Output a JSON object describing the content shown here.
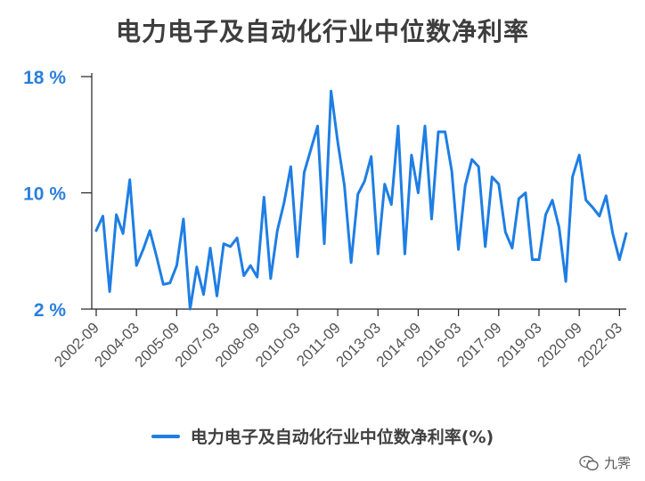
{
  "title": "电力电子及自动化行业中位数净利率",
  "watermark": {
    "text": "九霁",
    "icon": "wechat-icon"
  },
  "colors": {
    "line": "#1e7ee4",
    "tick_label": "#2a7fdc",
    "axis": "#222222",
    "grid": "#d9d9d9"
  },
  "chart_data": {
    "type": "line",
    "title": "电力电子及自动化行业中位数净利率",
    "xlabel": "",
    "ylabel": "",
    "ylim": [
      2,
      18
    ],
    "y_ticks": [
      2,
      10,
      18
    ],
    "y_tick_labels": [
      "2 %",
      "10 %",
      "18 %"
    ],
    "x_tick_labels": [
      "2002-09",
      "2004-03",
      "2005-09",
      "2007-03",
      "2008-09",
      "2010-03",
      "2011-09",
      "2013-03",
      "2014-09",
      "2016-03",
      "2017-09",
      "2019-03",
      "2020-09",
      "2022-03"
    ],
    "x_ticks_every": 6,
    "grid": false,
    "legend": "bottom",
    "series": [
      {
        "name": "电力电子及自动化行业中位数净利率(%)",
        "values": [
          7.4,
          8.4,
          3.2,
          8.5,
          7.2,
          10.9,
          5.0,
          6.1,
          7.4,
          5.6,
          3.7,
          3.8,
          5.0,
          8.2,
          2.0,
          4.9,
          3.0,
          6.2,
          2.9,
          6.5,
          6.3,
          6.9,
          4.3,
          5.0,
          4.2,
          9.7,
          4.1,
          7.4,
          9.3,
          11.8,
          5.6,
          11.4,
          13.0,
          14.6,
          6.5,
          17.0,
          13.5,
          10.5,
          5.2,
          9.9,
          10.8,
          12.5,
          5.8,
          10.6,
          9.2,
          14.6,
          5.8,
          12.6,
          10.0,
          14.6,
          8.2,
          14.2,
          14.2,
          11.5,
          6.1,
          10.5,
          12.3,
          11.8,
          6.3,
          11.1,
          10.6,
          7.3,
          6.2,
          9.6,
          10.0,
          5.4,
          5.4,
          8.5,
          9.5,
          7.6,
          3.9,
          11.1,
          12.6,
          9.5,
          9.0,
          8.4,
          9.8,
          7.2,
          5.4,
          7.2
        ]
      }
    ]
  }
}
